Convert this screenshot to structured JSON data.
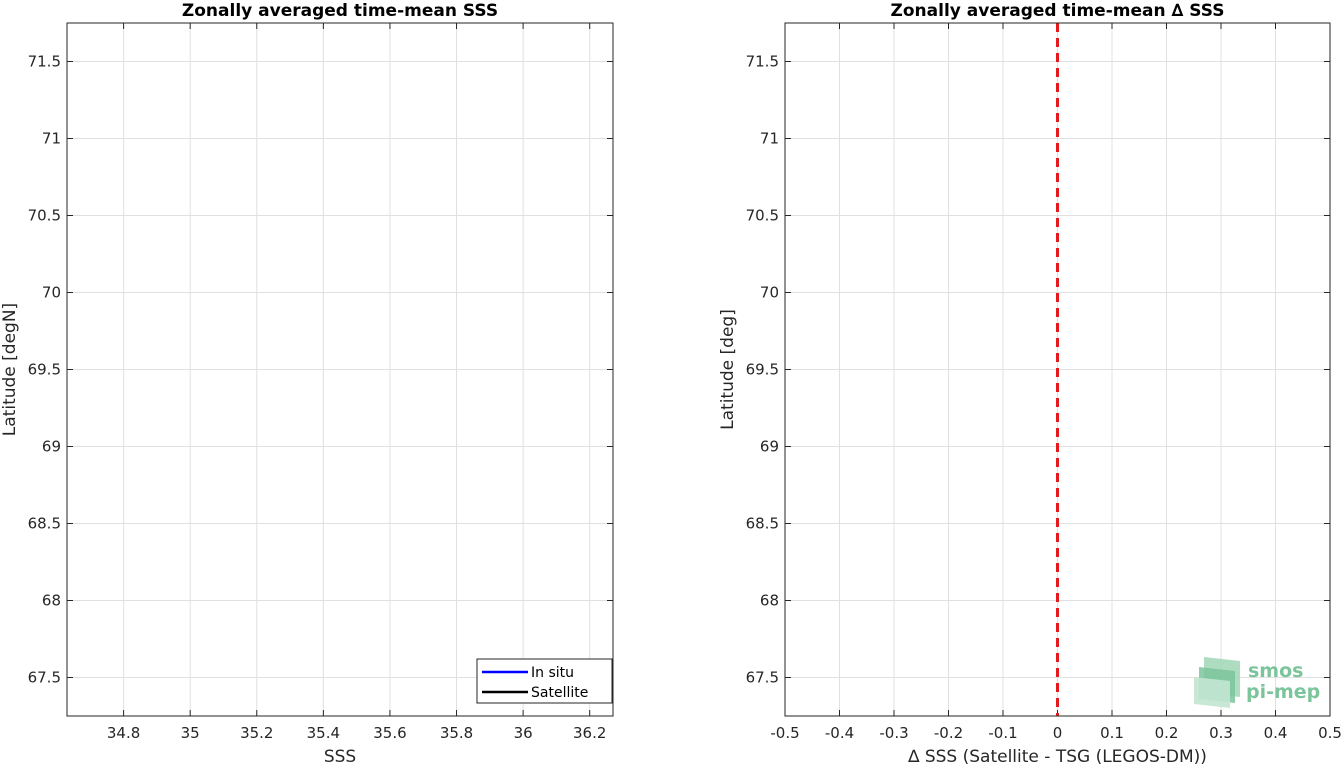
{
  "chart_data": [
    {
      "type": "line",
      "title": "Zonally averaged time-mean SSS",
      "xlabel": "SSS",
      "ylabel": "Latitude [degN]",
      "xlim": [
        34.63,
        36.27
      ],
      "ylim": [
        67.25,
        71.75
      ],
      "xticks": [
        "34.8",
        "35",
        "35.2",
        "35.4",
        "35.6",
        "35.8",
        "36",
        "36.2"
      ],
      "yticks": [
        "67.5",
        "68",
        "68.5",
        "69",
        "69.5",
        "70",
        "70.5",
        "71",
        "71.5"
      ],
      "grid": true,
      "legend": {
        "placement": "bottom-right",
        "entries": [
          {
            "label": "In situ",
            "color": "#0000ff"
          },
          {
            "label": "Satellite",
            "color": "#000000"
          }
        ]
      },
      "series": []
    },
    {
      "type": "line",
      "title": "Zonally averaged time-mean ∆ SSS",
      "xlabel": "∆ SSS (Satellite - TSG (LEGOS-DM))",
      "ylabel": "Latitude [deg]",
      "xlim": [
        -0.5,
        0.5
      ],
      "ylim": [
        67.25,
        71.75
      ],
      "xticks": [
        "-0.5",
        "-0.4",
        "-0.3",
        "-0.2",
        "-0.1",
        "0",
        "0.1",
        "0.2",
        "0.3",
        "0.4",
        "0.5"
      ],
      "yticks": [
        "67.5",
        "68",
        "68.5",
        "69",
        "69.5",
        "70",
        "70.5",
        "71",
        "71.5"
      ],
      "grid": true,
      "reference_line": {
        "x": 0,
        "style": "dashed",
        "color": "#e41a1c"
      },
      "series": []
    }
  ],
  "logo": {
    "line1": "smos",
    "line2": "pi-mep",
    "color": "#7cc49b"
  }
}
